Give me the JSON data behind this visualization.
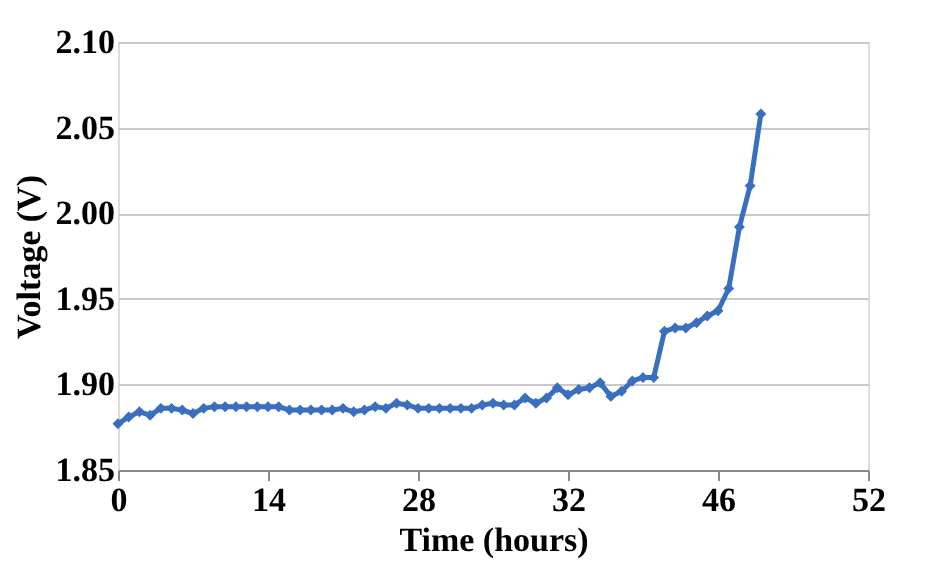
{
  "chart_data": {
    "type": "line",
    "xlabel": "Time (hours)",
    "ylabel": "Voltage (V)",
    "categories": [
      "0",
      null,
      null,
      null,
      null,
      null,
      null,
      null,
      null,
      null,
      null,
      null,
      null,
      null,
      "14",
      null,
      null,
      null,
      null,
      null,
      null,
      null,
      null,
      null,
      null,
      null,
      null,
      null,
      "28",
      null,
      null,
      null,
      null,
      null,
      null,
      null,
      null,
      null,
      null,
      null,
      null,
      null,
      "32",
      null,
      null,
      null,
      null,
      null,
      null,
      null,
      null,
      null,
      null,
      null,
      null,
      null,
      "46",
      null,
      null,
      null,
      null,
      null,
      null,
      null,
      null,
      null,
      null,
      null,
      null,
      null,
      "52"
    ],
    "ylim": [
      1.85,
      2.1
    ],
    "yticks": [
      {
        "value": 1.85,
        "label": "1.85"
      },
      {
        "value": 1.9,
        "label": "1.90"
      },
      {
        "value": 1.95,
        "label": "1.95"
      },
      {
        "value": 2.0,
        "label": "2.00"
      },
      {
        "value": 2.05,
        "label": "2.05"
      },
      {
        "value": 2.1,
        "label": "2.10"
      }
    ],
    "grid": "y",
    "marker": "diamond",
    "line_style": "solid",
    "series": [
      {
        "color": "#3a6fbf",
        "values": [
          1.877,
          1.881,
          1.884,
          1.882,
          1.886,
          1.886,
          1.885,
          1.883,
          1.886,
          1.887,
          1.887,
          1.887,
          1.887,
          1.887,
          1.887,
          1.887,
          1.885,
          1.885,
          1.885,
          1.885,
          1.885,
          1.886,
          1.884,
          1.885,
          1.887,
          1.886,
          1.889,
          1.888,
          1.886,
          1.886,
          1.886,
          1.886,
          1.886,
          1.886,
          1.888,
          1.889,
          1.888,
          1.888,
          1.892,
          1.889,
          1.892,
          1.898,
          1.894,
          1.897,
          1.898,
          1.901,
          1.893,
          1.896,
          1.902,
          1.904,
          1.904,
          1.931,
          1.933,
          1.933,
          1.936,
          1.94,
          1.943,
          1.956,
          1.992,
          2.016,
          2.058,
          null,
          null,
          null,
          null,
          null,
          null,
          null,
          null,
          null,
          null
        ]
      }
    ]
  }
}
